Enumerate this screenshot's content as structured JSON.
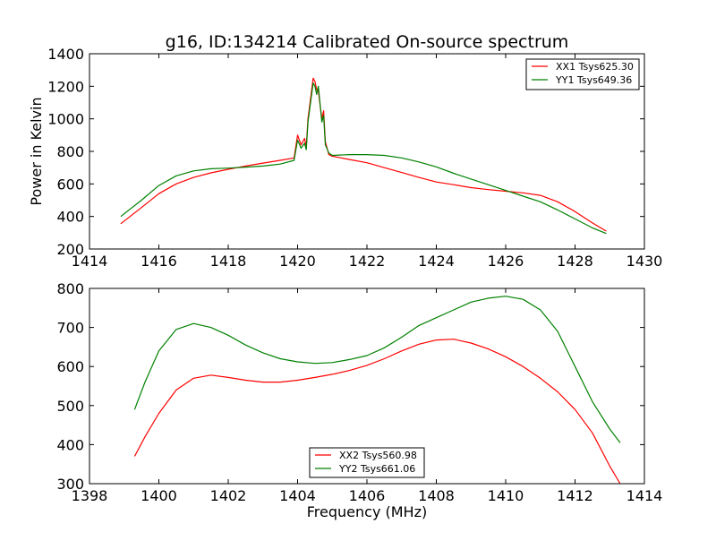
{
  "figure": {
    "title": "g16, ID:134214 Calibrated On-source spectrum",
    "shared_xlabel": "Frequency (MHz)"
  },
  "colors": {
    "red": "#ff0000",
    "green": "#008000"
  },
  "chart_data": [
    {
      "type": "line",
      "title": "g16, ID:134214 Calibrated On-source spectrum",
      "xlabel": "",
      "ylabel": "Power in Kelvin",
      "xlim": [
        1414,
        1430
      ],
      "ylim": [
        200,
        1400
      ],
      "xticks": [
        1414,
        1416,
        1418,
        1420,
        1422,
        1424,
        1426,
        1428,
        1430
      ],
      "yticks": [
        200,
        400,
        600,
        800,
        1000,
        1200,
        1400
      ],
      "grid": false,
      "legend": "top-right",
      "series": [
        {
          "name": "XX1 Tsys625.30",
          "color": "#ff0000",
          "x": [
            1414.9,
            1415.5,
            1416,
            1416.5,
            1417,
            1417.5,
            1418,
            1418.5,
            1419,
            1419.5,
            1419.9,
            1420.0,
            1420.1,
            1420.2,
            1420.25,
            1420.3,
            1420.45,
            1420.5,
            1420.55,
            1420.6,
            1420.7,
            1420.75,
            1420.8,
            1420.9,
            1421.0,
            1421.5,
            1422,
            1422.5,
            1423,
            1423.5,
            1424,
            1424.5,
            1425,
            1425.5,
            1426,
            1426.5,
            1427,
            1427.5,
            1428,
            1428.5,
            1428.9
          ],
          "y": [
            355,
            455,
            540,
            600,
            640,
            668,
            690,
            710,
            728,
            745,
            760,
            900,
            840,
            880,
            830,
            1000,
            1250,
            1230,
            1180,
            1170,
            1000,
            1050,
            860,
            780,
            770,
            750,
            730,
            700,
            670,
            640,
            612,
            595,
            577,
            565,
            555,
            545,
            530,
            490,
            430,
            360,
            310
          ]
        },
        {
          "name": "YY1 Tsys649.36",
          "color": "#008000",
          "x": [
            1414.9,
            1415.5,
            1416,
            1416.5,
            1417,
            1417.5,
            1418,
            1418.5,
            1419,
            1419.5,
            1419.9,
            1420.0,
            1420.1,
            1420.2,
            1420.25,
            1420.3,
            1420.45,
            1420.5,
            1420.55,
            1420.6,
            1420.7,
            1420.75,
            1420.8,
            1420.9,
            1421.0,
            1421.5,
            1422,
            1422.5,
            1423,
            1423.5,
            1424,
            1424.5,
            1425,
            1425.5,
            1426,
            1426.5,
            1427,
            1427.5,
            1428,
            1428.5,
            1428.9
          ],
          "y": [
            400,
            500,
            590,
            650,
            680,
            693,
            697,
            703,
            710,
            722,
            745,
            870,
            820,
            850,
            810,
            980,
            1220,
            1200,
            1150,
            1200,
            980,
            1020,
            840,
            790,
            775,
            780,
            780,
            775,
            760,
            735,
            705,
            665,
            630,
            595,
            560,
            525,
            490,
            440,
            385,
            330,
            295
          ]
        }
      ]
    },
    {
      "type": "line",
      "title": "",
      "xlabel": "Frequency (MHz)",
      "ylabel": "",
      "xlim": [
        1398,
        1414
      ],
      "ylim": [
        300,
        800
      ],
      "xticks": [
        1398,
        1400,
        1402,
        1404,
        1406,
        1408,
        1410,
        1412,
        1414
      ],
      "yticks": [
        300,
        400,
        500,
        600,
        700,
        800
      ],
      "grid": false,
      "legend": "bottom-center",
      "series": [
        {
          "name": "XX2 Tsys560.98",
          "color": "#ff0000",
          "x": [
            1399.3,
            1399.6,
            1400,
            1400.5,
            1401,
            1401.5,
            1402,
            1402.5,
            1403,
            1403.5,
            1404,
            1404.5,
            1405,
            1405.5,
            1406,
            1406.5,
            1407,
            1407.5,
            1408,
            1408.5,
            1409,
            1409.5,
            1410,
            1410.5,
            1411,
            1411.5,
            1412,
            1412.5,
            1413,
            1413.3
          ],
          "y": [
            370,
            420,
            480,
            540,
            570,
            578,
            572,
            565,
            560,
            560,
            565,
            572,
            580,
            590,
            603,
            620,
            640,
            657,
            668,
            670,
            660,
            645,
            625,
            600,
            570,
            535,
            490,
            430,
            345,
            300
          ]
        },
        {
          "name": "YY2 Tsys661.06",
          "color": "#008000",
          "x": [
            1399.3,
            1399.6,
            1400,
            1400.5,
            1401,
            1401.5,
            1402,
            1402.5,
            1403,
            1403.5,
            1404,
            1404.5,
            1405,
            1405.5,
            1406,
            1406.5,
            1407,
            1407.5,
            1408,
            1408.5,
            1409,
            1409.5,
            1410,
            1410.5,
            1411,
            1411.5,
            1412,
            1412.5,
            1413,
            1413.3
          ],
          "y": [
            490,
            560,
            640,
            695,
            710,
            700,
            680,
            655,
            635,
            620,
            612,
            608,
            610,
            618,
            628,
            648,
            675,
            705,
            725,
            745,
            765,
            775,
            780,
            772,
            745,
            690,
            600,
            510,
            440,
            405
          ]
        }
      ]
    }
  ]
}
